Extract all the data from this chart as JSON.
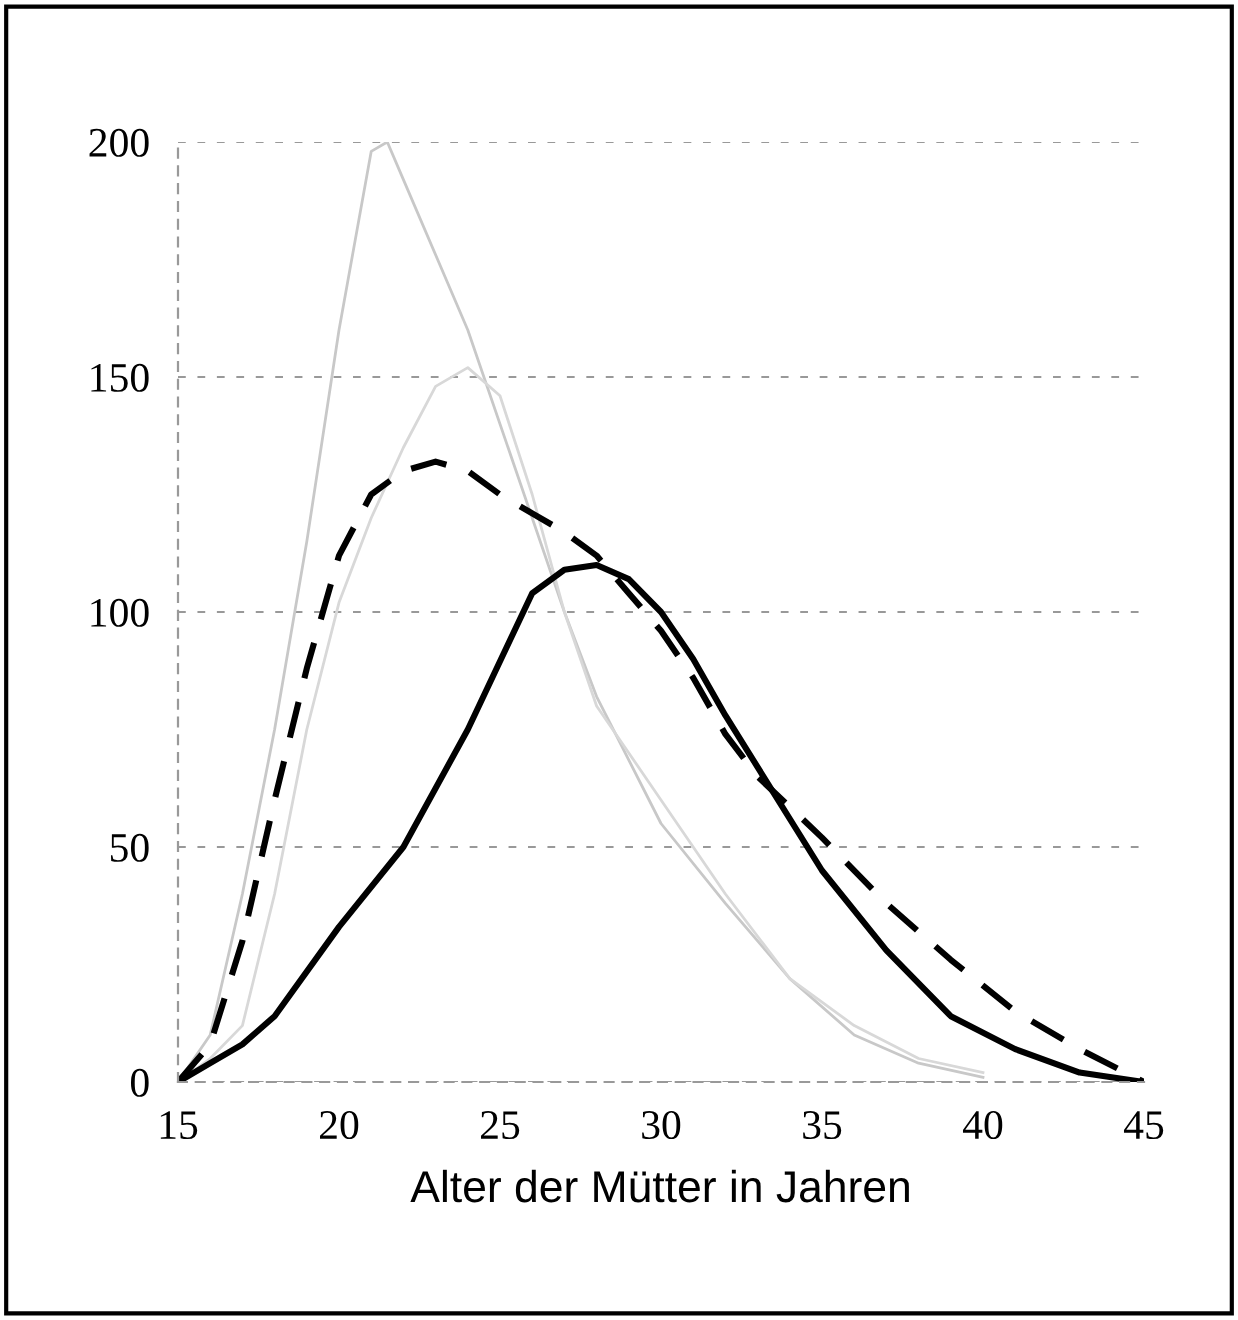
{
  "chart_data": {
    "type": "line",
    "xlabel": "Alter der Mütter in Jahren",
    "xlim": [
      15,
      45
    ],
    "xticks": [
      15,
      20,
      25,
      30,
      35,
      40,
      45
    ],
    "ylim": [
      0,
      200
    ],
    "yticks": [
      0,
      50,
      100,
      150,
      200
    ],
    "grid": "y",
    "marker": "none",
    "series": [
      {
        "color": "#c8c8c8",
        "line_style": "solid",
        "x": [
          15,
          16,
          17,
          18,
          19,
          20,
          21,
          21.5,
          22,
          24,
          26,
          27,
          28,
          30,
          32,
          34,
          36,
          38,
          40
        ],
        "values": [
          0,
          10,
          40,
          75,
          115,
          160,
          198,
          200,
          192,
          160,
          120,
          100,
          82,
          55,
          38,
          22,
          10,
          4,
          1
        ]
      },
      {
        "color": "#d8d8d8",
        "line_style": "solid",
        "x": [
          15,
          16,
          17,
          18,
          19,
          20,
          21,
          22,
          23,
          24,
          25,
          26,
          27,
          28,
          30,
          32,
          34,
          36,
          38,
          40
        ],
        "values": [
          0,
          5,
          12,
          40,
          75,
          102,
          120,
          135,
          148,
          152,
          146,
          125,
          100,
          80,
          60,
          40,
          22,
          12,
          5,
          2
        ]
      },
      {
        "color": "#000000",
        "line_style": "dashed",
        "x": [
          15,
          16,
          17,
          18,
          19,
          20,
          21,
          22,
          23,
          24,
          25,
          26,
          27,
          28,
          29,
          30,
          31,
          32,
          33,
          35,
          37,
          39,
          41,
          43,
          45
        ],
        "values": [
          0,
          8,
          30,
          60,
          88,
          112,
          125,
          130,
          132,
          130,
          125,
          121,
          117,
          112,
          104,
          96,
          86,
          74,
          65,
          52,
          38,
          26,
          15,
          7,
          0
        ]
      },
      {
        "color": "#000000",
        "line_style": "solid",
        "x": [
          15,
          16,
          17,
          18,
          20,
          22,
          24,
          26,
          27,
          28,
          29,
          30,
          31,
          32,
          33,
          35,
          37,
          39,
          41,
          43,
          45
        ],
        "values": [
          0,
          4,
          8,
          14,
          33,
          50,
          75,
          104,
          109,
          110,
          107,
          100,
          90,
          78,
          67,
          45,
          28,
          14,
          7,
          2,
          0
        ]
      }
    ]
  }
}
